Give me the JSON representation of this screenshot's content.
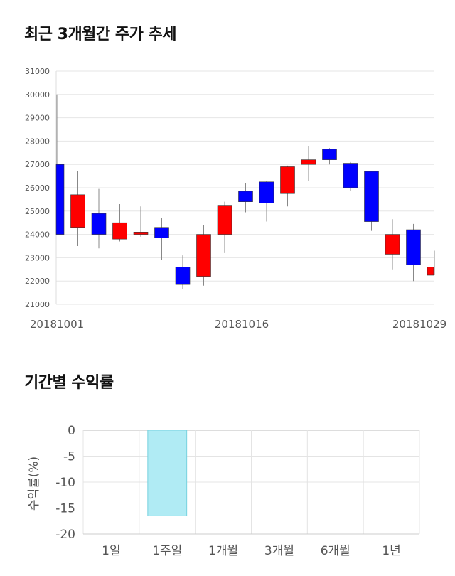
{
  "candlestick_section": {
    "title": "최근 3개월간 주가 추세"
  },
  "returns_section": {
    "title": "기간별 수익률"
  },
  "chart_data": [
    {
      "type": "candlestick",
      "title": "최근 3개월간 주가 추세",
      "ylim": [
        21000,
        31000
      ],
      "y_ticks": [
        21000,
        22000,
        23000,
        24000,
        25000,
        26000,
        27000,
        28000,
        29000,
        30000,
        31000
      ],
      "x_tick_labels": [
        "20181001",
        "20181016",
        "20181029"
      ],
      "grid": true,
      "colors": {
        "up": "#ff0000",
        "down": "#0000ff",
        "wick": "#888888"
      },
      "candles": [
        {
          "open": 27000,
          "close": 24000,
          "high": 30000,
          "low": 24000
        },
        {
          "open": 24300,
          "close": 25700,
          "high": 26700,
          "low": 23500
        },
        {
          "open": 24900,
          "close": 24000,
          "high": 25950,
          "low": 23400
        },
        {
          "open": 23800,
          "close": 24500,
          "high": 25300,
          "low": 23700
        },
        {
          "open": 24000,
          "close": 24100,
          "high": 25200,
          "low": 23900
        },
        {
          "open": 24300,
          "close": 23850,
          "high": 24700,
          "low": 22900
        },
        {
          "open": 22600,
          "close": 21850,
          "high": 23100,
          "low": 21650
        },
        {
          "open": 22200,
          "close": 24000,
          "high": 24400,
          "low": 21800
        },
        {
          "open": 24000,
          "close": 25250,
          "high": 25400,
          "low": 23200
        },
        {
          "open": 25850,
          "close": 25400,
          "high": 26200,
          "low": 24950
        },
        {
          "open": 26250,
          "close": 25350,
          "high": 26300,
          "low": 24550
        },
        {
          "open": 25750,
          "close": 26900,
          "high": 26950,
          "low": 25200
        },
        {
          "open": 27000,
          "close": 27200,
          "high": 27800,
          "low": 26300
        },
        {
          "open": 27650,
          "close": 27200,
          "high": 27700,
          "low": 27000
        },
        {
          "open": 27050,
          "close": 26000,
          "high": 27100,
          "low": 25850
        },
        {
          "open": 26700,
          "close": 24550,
          "high": 26700,
          "low": 24150
        },
        {
          "open": 23150,
          "close": 24000,
          "high": 24650,
          "low": 22500
        },
        {
          "open": 24200,
          "close": 22700,
          "high": 24450,
          "low": 22000
        },
        {
          "open": 22250,
          "close": 22600,
          "high": 23300,
          "low": 22250
        }
      ]
    },
    {
      "type": "bar",
      "title": "기간별 수익률",
      "ylabel": "수익률(%)",
      "categories": [
        "1일",
        "1주일",
        "1개월",
        "3개월",
        "6개월",
        "1년"
      ],
      "values": [
        null,
        -16.5,
        null,
        null,
        null,
        null
      ],
      "ylim": [
        -20,
        0
      ],
      "y_ticks": [
        0,
        -5,
        -10,
        -15,
        -20
      ],
      "grid": true,
      "colors": {
        "bar_fill": "#b0ebf4",
        "bar_stroke": "#76d2df"
      }
    }
  ]
}
